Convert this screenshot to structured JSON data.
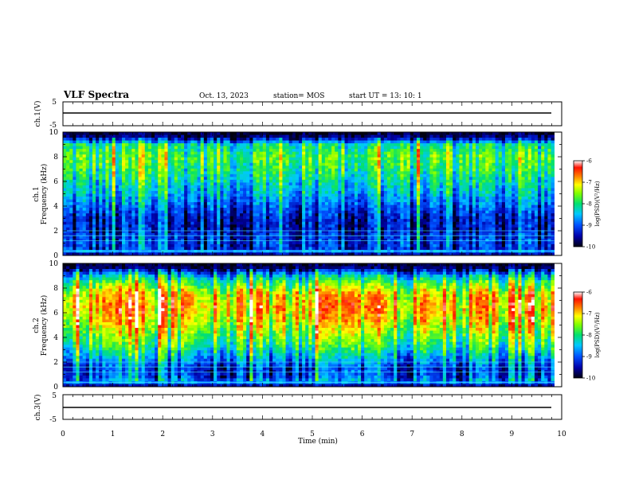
{
  "header": {
    "title": "VLF Spectra",
    "date": "Oct. 13, 2023",
    "station": "station= MOS",
    "start": "start  UT =  13: 10: 1"
  },
  "chart_data": [
    {
      "type": "line",
      "name": "ch1-waveform",
      "ylabel": "ch.1(V)",
      "ylim": [
        -5,
        5
      ],
      "yticks": [
        "5",
        "-5"
      ],
      "xlim": [
        0,
        10
      ]
    },
    {
      "type": "heatmap",
      "name": "ch1-spectrogram",
      "ylabel_line1": "ch.1",
      "ylabel_line2": "Frequency (kHz)",
      "ylim": [
        0,
        10
      ],
      "yticks": [
        "0",
        "2",
        "4",
        "6",
        "8",
        "10"
      ],
      "xlim": [
        0,
        9.85
      ],
      "colorbar": {
        "label": "log(PSD)(V²/Hz)",
        "range": [
          -10,
          -6
        ],
        "ticks": [
          "-6",
          "-7",
          "-8",
          "-9",
          "-10"
        ]
      },
      "profile": [
        {
          "f": 0.0,
          "v": -10.0
        },
        {
          "f": 0.3,
          "v": -8.6
        },
        {
          "f": 0.6,
          "v": -9.3
        },
        {
          "f": 1.2,
          "v": -9.2
        },
        {
          "f": 2.0,
          "v": -9.4
        },
        {
          "f": 3.0,
          "v": -9.4
        },
        {
          "f": 4.0,
          "v": -9.0
        },
        {
          "f": 5.0,
          "v": -8.6
        },
        {
          "f": 6.0,
          "v": -8.3
        },
        {
          "f": 7.0,
          "v": -8.0
        },
        {
          "f": 8.0,
          "v": -7.8
        },
        {
          "f": 9.0,
          "v": -8.2
        },
        {
          "f": 9.5,
          "v": -9.6
        },
        {
          "f": 10.0,
          "v": -10.0
        }
      ]
    },
    {
      "type": "heatmap",
      "name": "ch2-spectrogram",
      "ylabel_line1": "ch.2",
      "ylabel_line2": "Frequency (kHz)",
      "ylim": [
        0,
        10
      ],
      "yticks": [
        "0",
        "2",
        "4",
        "6",
        "8",
        "10"
      ],
      "xlim": [
        0,
        9.85
      ],
      "colorbar": {
        "label": "log(PSD)(V²/Hz)",
        "range": [
          -10,
          -6
        ],
        "ticks": [
          "-6",
          "-7",
          "-8",
          "-9",
          "-10"
        ]
      },
      "profile": [
        {
          "f": 0.0,
          "v": -10.0
        },
        {
          "f": 0.3,
          "v": -8.7
        },
        {
          "f": 0.8,
          "v": -9.2
        },
        {
          "f": 1.5,
          "v": -9.3
        },
        {
          "f": 2.5,
          "v": -8.6
        },
        {
          "f": 3.5,
          "v": -8.0
        },
        {
          "f": 4.5,
          "v": -7.6
        },
        {
          "f": 5.5,
          "v": -7.2
        },
        {
          "f": 6.5,
          "v": -7.0
        },
        {
          "f": 7.5,
          "v": -7.2
        },
        {
          "f": 8.3,
          "v": -7.8
        },
        {
          "f": 9.0,
          "v": -8.6
        },
        {
          "f": 9.5,
          "v": -9.7
        },
        {
          "f": 10.0,
          "v": -10.0
        }
      ]
    },
    {
      "type": "line",
      "name": "ch3-waveform",
      "ylabel": "ch.3(V)",
      "ylim": [
        -5,
        5
      ],
      "yticks": [
        "5",
        "-5"
      ],
      "xlim": [
        0,
        10
      ]
    }
  ],
  "xaxis": {
    "label": "Time (min)",
    "range": [
      0,
      10
    ],
    "ticks": [
      "0",
      "1",
      "2",
      "3",
      "4",
      "5",
      "6",
      "7",
      "8",
      "9",
      "10"
    ]
  }
}
